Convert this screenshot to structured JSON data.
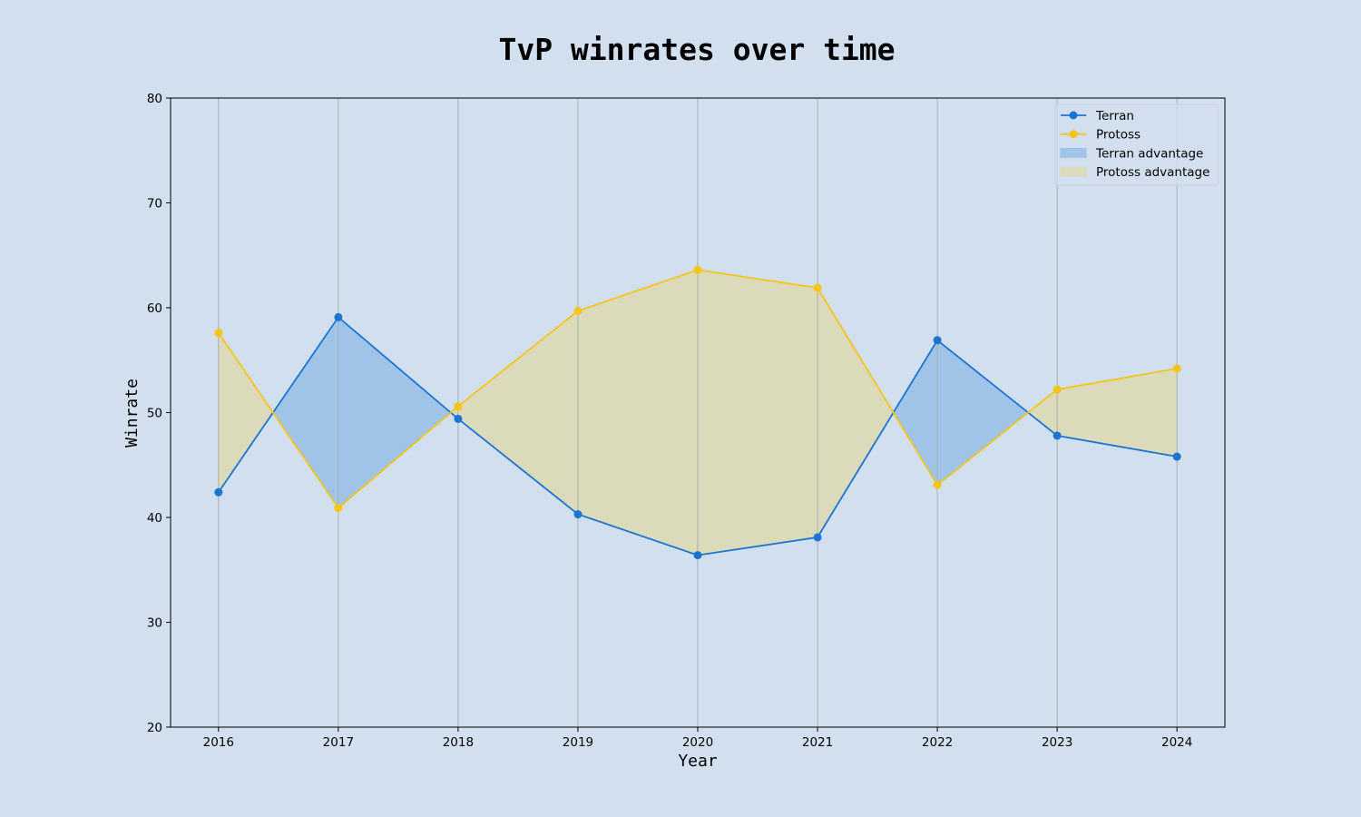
{
  "chart_data": {
    "type": "line",
    "title": "TvP winrates over time",
    "xlabel": "Year",
    "ylabel": "Winrate",
    "x": [
      2016,
      2017,
      2018,
      2019,
      2020,
      2021,
      2022,
      2023,
      2024
    ],
    "x_tick_labels": [
      "2016",
      "2017",
      "2018",
      "2019",
      "2020",
      "2021",
      "2022",
      "2023",
      "2024"
    ],
    "xlim": [
      2015.6,
      2024.4
    ],
    "ylim": [
      20,
      80
    ],
    "y_ticks": [
      20,
      30,
      40,
      50,
      60,
      70,
      80
    ],
    "y_tick_labels": [
      "20",
      "30",
      "40",
      "50",
      "60",
      "70",
      "80"
    ],
    "grid": "vertical",
    "legend_position": "top-right",
    "series": [
      {
        "name": "Terran",
        "color": "#1a75d2",
        "marker": "circle",
        "values": [
          42.4,
          59.1,
          49.4,
          40.3,
          36.4,
          38.1,
          56.9,
          47.8,
          45.8
        ]
      },
      {
        "name": "Protoss",
        "color": "#f5c518",
        "marker": "circle",
        "values": [
          57.6,
          40.9,
          50.6,
          59.7,
          63.6,
          61.9,
          43.1,
          52.2,
          54.2
        ]
      }
    ],
    "fills": [
      {
        "name": "Terran advantage",
        "color": "#a0c4e8",
        "where": "Terran > Protoss"
      },
      {
        "name": "Protoss advantage",
        "color": "#dbdabb",
        "where": "Protoss > Terran"
      }
    ]
  },
  "colors": {
    "background": "#d1dfee",
    "grid": "#a9a9a9",
    "axis": "#000000"
  }
}
